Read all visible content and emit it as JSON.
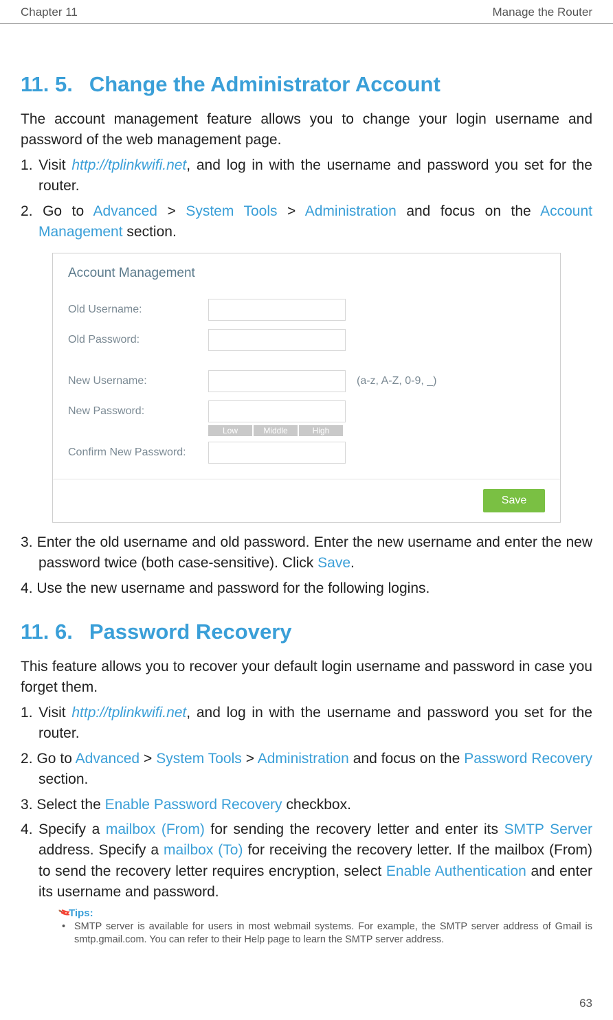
{
  "header": {
    "chapter": "Chapter 11",
    "title": "Manage the Router"
  },
  "section1": {
    "number": "11. 5.",
    "title": "Change the Administrator Account",
    "intro": "The account management feature allows you to change your login username and password of the web management page.",
    "steps": {
      "s1a": "Visit ",
      "s1_link": "http://tplinkwifi.net",
      "s1b": ", and log in with the username and password you set for the router.",
      "s2a": "Go to ",
      "s2_nav1": "Advanced",
      "s2_sep": " > ",
      "s2_nav2": "System Tools",
      "s2_nav3": "Administration",
      "s2b": " and focus on the ",
      "s2_nav4": "Account Management",
      "s2c": " section.",
      "s3a": "Enter the old username and old password. Enter the new username and enter the new password twice (both case-sensitive). Click ",
      "s3_save": "Save",
      "s3b": ".",
      "s4": "Use the new username and password for the following  logins."
    }
  },
  "figure": {
    "panel_title": "Account Management",
    "old_user_label": "Old Username:",
    "old_pass_label": "Old Password:",
    "new_user_label": "New Username:",
    "new_user_hint": "(a-z, A-Z, 0-9, _)",
    "new_pass_label": "New Password:",
    "confirm_label": "Confirm New Password:",
    "strength": {
      "low": "Low",
      "mid": "Middle",
      "high": "High"
    },
    "save_btn": "Save",
    "colors": {
      "panel_border": "#cfcfcf",
      "label_text": "#7b8a94",
      "title_text": "#5c7b8c",
      "input_border": "#d7d7d7",
      "strength_bg": "#c9c9c9",
      "save_bg": "#7ac043",
      "save_text": "#ffffff"
    }
  },
  "section2": {
    "number": "11. 6.",
    "title": "Password Recovery",
    "intro": "This feature allows you to recover your default login username and password in case you forget them.",
    "steps": {
      "s1a": "Visit ",
      "s1_link": "http://tplinkwifi.net",
      "s1b": ", and log in with the username and password you set for the router.",
      "s2a": "Go to ",
      "s2_nav1": "Advanced",
      "s2_sep": " > ",
      "s2_nav2": "System Tools",
      "s2_nav3": "Administration",
      "s2b": " and focus on the ",
      "s2_nav4": "Password Recovery",
      "s2c": " section.",
      "s3a": "Select the ",
      "s3_t": "Enable Password Recovery",
      "s3b": " checkbox.",
      "s4a": "Specify a ",
      "s4_t1": "mailbox (From)",
      "s4b": " for sending the recovery letter and enter its ",
      "s4_t2": "SMTP Server",
      "s4c": " address. Specify a ",
      "s4_t3": "mailbox (To)",
      "s4d": " for receiving the recovery letter. If the mailbox (From) to send the recovery letter requires encryption, select ",
      "s4_t4": "Enable Authentication",
      "s4e": " and enter its username and password."
    },
    "tips": {
      "heading": "Tips:",
      "item1": "SMTP server is available for users in most webmail systems. For example, the SMTP server address of Gmail is smtp.gmail.com. You can refer to their Help page to learn the SMTP server address."
    }
  },
  "page_number": "63",
  "theme": {
    "heading_color": "#3a9fd8",
    "body_color": "#222222",
    "link_color": "#3a9fd8"
  }
}
